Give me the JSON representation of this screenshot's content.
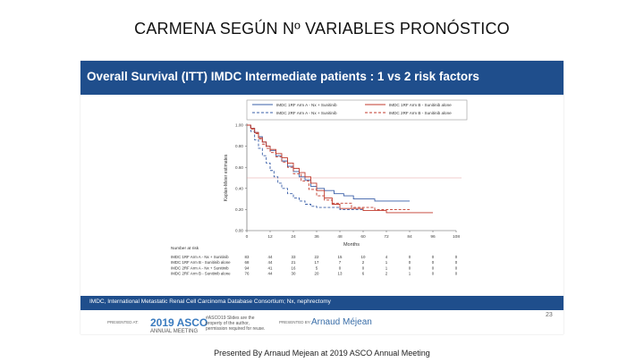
{
  "slide_title": "CARMENA SEGÚN Nº VARIABLES PRONÓSTICO",
  "poster_header": "Overall Survival (ITT) IMDC Intermediate patients : 1 vs 2 risk factors",
  "bottom_caption": "Presented By Arnaud Mejean at 2019 ASCO Annual Meeting",
  "footer": {
    "abbreviations": "IMDC, International Metastatic Renal Cell Carcinoma Database Consortium; Nx, nephrectomy",
    "presented_at": "PRESENTED AT:",
    "meeting_logo": "2019 ASCO",
    "meeting_sub": "ANNUAL MEETING",
    "meeting_text": "#ASCO19 Slides are the property of the author, permission required for reuse.",
    "presented_by": "PRESENTED BY:",
    "presenter": "Arnaud Méjean",
    "slide_number": "23"
  },
  "colors": {
    "header_bg": "#1f4e8c",
    "arm_a": "#3a5fa8",
    "arm_b": "#c0392b",
    "hline": "#e59a9a"
  },
  "chart_data": {
    "type": "line",
    "title": "",
    "xlabel": "Months",
    "ylabel": "Kaplan-Meier estimates",
    "xlim": [
      0,
      108
    ],
    "ylim": [
      0,
      1
    ],
    "x_ticks": [
      0,
      12,
      24,
      36,
      48,
      60,
      72,
      84,
      96,
      108
    ],
    "y_ticks": [
      0,
      0.2,
      0.4,
      0.6,
      0.8,
      1.0
    ],
    "y_tick_labels": [
      "0.00",
      "0.20",
      "0.40",
      "0.60",
      "0.80",
      "1.00"
    ],
    "reference_line": 0.5,
    "series": [
      {
        "name": "IMDC 1RF Arm A - Nx + Sunitinib",
        "color": "#3a5fa8",
        "dash": false,
        "x": [
          0,
          2,
          4,
          6,
          8,
          10,
          12,
          15,
          18,
          21,
          24,
          27,
          30,
          33,
          36,
          40,
          45,
          50,
          55,
          60,
          66,
          72,
          78,
          84
        ],
        "y": [
          1.0,
          0.97,
          0.93,
          0.89,
          0.84,
          0.8,
          0.76,
          0.71,
          0.66,
          0.61,
          0.56,
          0.51,
          0.48,
          0.42,
          0.4,
          0.38,
          0.35,
          0.33,
          0.3,
          0.3,
          0.28,
          0.28,
          0.28,
          0.28
        ]
      },
      {
        "name": "IMDC 1RF Arm B - Sunitinib alone",
        "color": "#c0392b",
        "dash": false,
        "x": [
          0,
          2,
          4,
          6,
          8,
          10,
          12,
          15,
          18,
          21,
          24,
          27,
          30,
          33,
          36,
          40,
          44,
          48,
          54,
          60,
          66,
          72,
          84,
          96
        ],
        "y": [
          1.0,
          0.97,
          0.93,
          0.88,
          0.84,
          0.8,
          0.77,
          0.73,
          0.69,
          0.64,
          0.59,
          0.55,
          0.51,
          0.45,
          0.38,
          0.31,
          0.25,
          0.21,
          0.21,
          0.19,
          0.19,
          0.17,
          0.17,
          0.17
        ]
      },
      {
        "name": "IMDC 2RF Arm A - Nx + Sunitinib",
        "color": "#3a5fa8",
        "dash": true,
        "x": [
          0,
          2,
          4,
          6,
          8,
          10,
          12,
          14,
          16,
          18,
          21,
          24,
          27,
          30,
          33,
          36,
          40,
          48,
          54,
          60
        ],
        "y": [
          1.0,
          0.94,
          0.86,
          0.78,
          0.71,
          0.64,
          0.57,
          0.51,
          0.45,
          0.4,
          0.35,
          0.31,
          0.28,
          0.25,
          0.23,
          0.22,
          0.22,
          0.2,
          0.2,
          0.2
        ]
      },
      {
        "name": "IMDC 2RF Arm B - Sunitinib alone",
        "color": "#c0392b",
        "dash": true,
        "x": [
          0,
          2,
          4,
          6,
          8,
          10,
          12,
          15,
          18,
          21,
          24,
          28,
          32,
          36,
          40,
          44,
          48,
          54,
          60,
          66,
          72,
          84
        ],
        "y": [
          1.0,
          0.96,
          0.92,
          0.87,
          0.82,
          0.78,
          0.74,
          0.7,
          0.65,
          0.6,
          0.54,
          0.47,
          0.39,
          0.33,
          0.29,
          0.26,
          0.26,
          0.22,
          0.22,
          0.2,
          0.2,
          0.2
        ]
      }
    ],
    "at_risk": {
      "title": "Number at risk",
      "rows": [
        {
          "label": "IMDC 1RF Arm A - Nx + Sunitinib",
          "counts": [
            "83",
            "44",
            "33",
            "22",
            "15",
            "10",
            "4",
            "0",
            "0",
            "0"
          ]
        },
        {
          "label": "IMDC 1RF Arm B - Sunitinib alone",
          "counts": [
            "68",
            "44",
            "21",
            "17",
            "7",
            "2",
            "1",
            "0",
            "0",
            "0"
          ]
        },
        {
          "label": "IMDC 2RF Arm A - Nx + Sunitinib",
          "counts": [
            "94",
            "41",
            "16",
            "5",
            "0",
            "0",
            "1",
            "0",
            "0",
            "0"
          ]
        },
        {
          "label": "IMDC 2RF Arm B - Sunitinib alone",
          "counts": [
            "76",
            "44",
            "30",
            "20",
            "13",
            "6",
            "2",
            "1",
            "0",
            "0"
          ]
        }
      ]
    }
  }
}
